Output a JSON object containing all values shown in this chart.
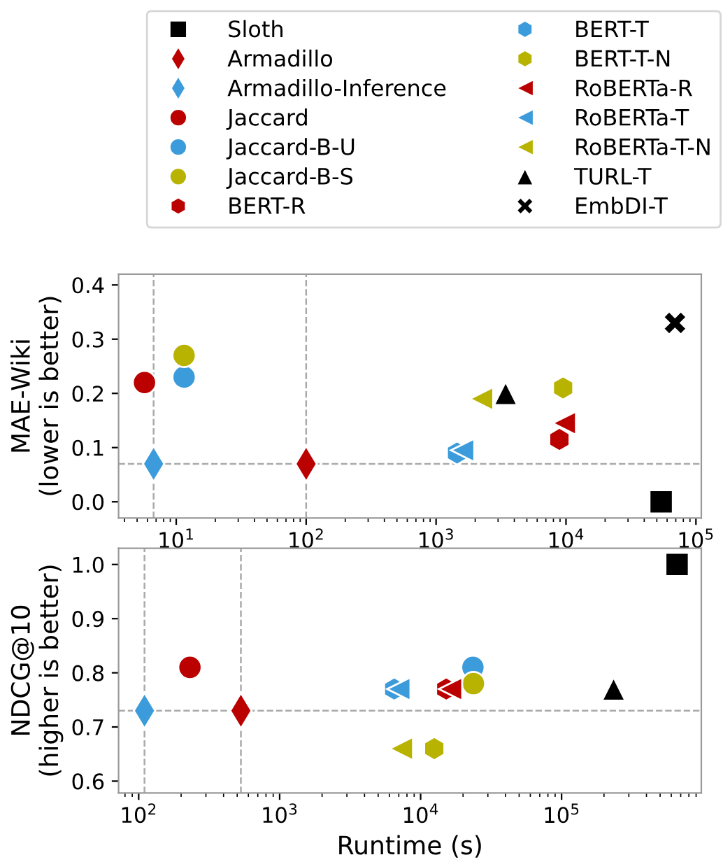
{
  "chart_data": [
    {
      "type": "scatter",
      "ylabel": "MAE-Wiki\n(lower is better)",
      "log": "x",
      "legend": "top",
      "grid": false,
      "xlim": [
        3.6,
        110000
      ],
      "xticks": [
        {
          "value": 10,
          "label": "10$^{1}$"
        },
        {
          "value": 100,
          "label": "10$^{2}$"
        },
        {
          "value": 1000,
          "label": "10$^{3}$"
        },
        {
          "value": 10000,
          "label": "10$^{4}$"
        },
        {
          "value": 100000,
          "label": "10$^{5}$"
        }
      ],
      "ylim": [
        -0.03,
        0.42
      ],
      "yticks": [
        {
          "value": 0,
          "label": "0.0"
        },
        0.1,
        0.2,
        0.3,
        0.4
      ],
      "ref_lines": [
        {
          "axis": "x",
          "value": 6.7,
          "color": "#aaaaaa",
          "line_style": "dashed"
        },
        {
          "axis": "x",
          "value": 100,
          "color": "#aaaaaa",
          "line_style": "dashed"
        },
        {
          "axis": "y",
          "value": 0.07,
          "color": "#aaaaaa",
          "line_style": "dashed"
        }
      ],
      "series": [
        {
          "name": "Sloth",
          "color": "#000000",
          "marker": "square",
          "x": [
            54000
          ],
          "values": [
            0.0
          ]
        },
        {
          "name": "Armadillo",
          "color": "#bb0000",
          "marker": "diamond",
          "x": [
            100
          ],
          "values": [
            0.07
          ]
        },
        {
          "name": "Armadillo-Inference",
          "color": "#3b9bdb",
          "marker": "diamond",
          "x": [
            6.7
          ],
          "values": [
            0.07
          ]
        },
        {
          "name": "Jaccard",
          "color": "#bb0000",
          "marker": "circle",
          "x": [
            5.7
          ],
          "values": [
            0.22
          ]
        },
        {
          "name": "Jaccard-B-U",
          "color": "#3b9bdb",
          "marker": "circle",
          "x": [
            11.5
          ],
          "values": [
            0.23
          ]
        },
        {
          "name": "Jaccard-B-S",
          "color": "#b8b300",
          "marker": "circle",
          "x": [
            11.5
          ],
          "values": [
            0.27
          ]
        },
        {
          "name": "BERT-R",
          "color": "#bb0000",
          "x": [
            8900
          ],
          "values": [
            0.115
          ]
        },
        {
          "name": "BERT-T",
          "color": "#3b9bdb",
          "x": [
            1450
          ],
          "values": [
            0.09
          ]
        },
        {
          "name": "BERT-T-N",
          "color": "#b8b300",
          "x": [
            9500
          ],
          "values": [
            0.21
          ]
        },
        {
          "name": "RoBERTa-R",
          "color": "#bb0000",
          "marker": "triangle-left",
          "x": [
            9700
          ],
          "values": [
            0.145
          ]
        },
        {
          "name": "RoBERTa-T",
          "color": "#3b9bdb",
          "marker": "triangle-left",
          "x": [
            1600
          ],
          "values": [
            0.095
          ]
        },
        {
          "name": "RoBERTa-T-N",
          "color": "#b8b300",
          "marker": "triangle-left",
          "x": [
            2240
          ],
          "values": [
            0.19
          ]
        },
        {
          "name": "TURL-T",
          "color": "#000000",
          "marker": "triangle",
          "x": [
            3430
          ],
          "values": [
            0.2
          ]
        },
        {
          "name": "EmbDI-T",
          "color": "#000000",
          "marker": "cross",
          "x": [
            69000
          ],
          "values": [
            0.33
          ]
        }
      ]
    },
    {
      "type": "scatter",
      "xlabel": "Runtime (s)",
      "ylabel": "NDCG@10\n(higher is better)",
      "log": "x",
      "grid": false,
      "xlim": [
        72,
        980000
      ],
      "xticks": [
        {
          "value": 100,
          "label": "10$^{2}$"
        },
        {
          "value": 1000,
          "label": "10$^{3}$"
        },
        {
          "value": 10000,
          "label": "10$^{4}$"
        },
        {
          "value": 100000,
          "label": "10$^{5}$"
        }
      ],
      "ylim": [
        0.578,
        1.03
      ],
      "yticks": [
        0.6,
        0.7,
        0.8,
        0.9,
        {
          "value": 1,
          "label": "1.0"
        }
      ],
      "ref_lines": [
        {
          "axis": "x",
          "value": 110,
          "color": "#aaaaaa",
          "line_style": "dashed"
        },
        {
          "axis": "x",
          "value": 531,
          "color": "#aaaaaa",
          "line_style": "dashed"
        },
        {
          "axis": "y",
          "value": 0.73,
          "color": "#aaaaaa",
          "line_style": "dashed"
        }
      ],
      "series": [
        {
          "name": "Sloth",
          "color": "#000000",
          "marker": "square",
          "x": [
            660000
          ],
          "values": [
            1.0
          ]
        },
        {
          "name": "Armadillo",
          "color": "#bb0000",
          "marker": "diamond",
          "x": [
            531
          ],
          "values": [
            0.73
          ]
        },
        {
          "name": "Armadillo-Inference",
          "color": "#3b9bdb",
          "marker": "diamond",
          "x": [
            110
          ],
          "values": [
            0.73
          ]
        },
        {
          "name": "Jaccard",
          "color": "#bb0000",
          "marker": "circle",
          "x": [
            231
          ],
          "values": [
            0.81
          ]
        },
        {
          "name": "Jaccard-B-U",
          "color": "#3b9bdb",
          "marker": "circle",
          "x": [
            23500
          ],
          "values": [
            0.81
          ]
        },
        {
          "name": "Jaccard-B-S",
          "color": "#b8b300",
          "marker": "circle",
          "x": [
            23700
          ],
          "values": [
            0.78
          ]
        },
        {
          "name": "BERT-R",
          "color": "#bb0000",
          "x": [
            15200
          ],
          "values": [
            0.77
          ]
        },
        {
          "name": "BERT-T",
          "color": "#3b9bdb",
          "x": [
            6500
          ],
          "values": [
            0.77
          ]
        },
        {
          "name": "BERT-T-N",
          "color": "#b8b300",
          "x": [
            12500
          ],
          "values": [
            0.66
          ]
        },
        {
          "name": "RoBERTa-R",
          "color": "#bb0000",
          "marker": "triangle-left",
          "x": [
            16300
          ],
          "values": [
            0.77
          ]
        },
        {
          "name": "RoBERTa-T",
          "color": "#3b9bdb",
          "marker": "triangle-left",
          "x": [
            7000
          ],
          "values": [
            0.77
          ]
        },
        {
          "name": "RoBERTa-T-N",
          "color": "#b8b300",
          "marker": "triangle-left",
          "x": [
            7300
          ],
          "values": [
            0.66
          ]
        },
        {
          "name": "TURL-T",
          "color": "#000000",
          "marker": "triangle",
          "x": [
            234000
          ],
          "values": [
            0.77
          ]
        },
        {
          "name": "EmbDI-T",
          "color": "#000000",
          "marker": "cross",
          "x": [
            null
          ],
          "values": [
            null
          ]
        }
      ]
    }
  ]
}
